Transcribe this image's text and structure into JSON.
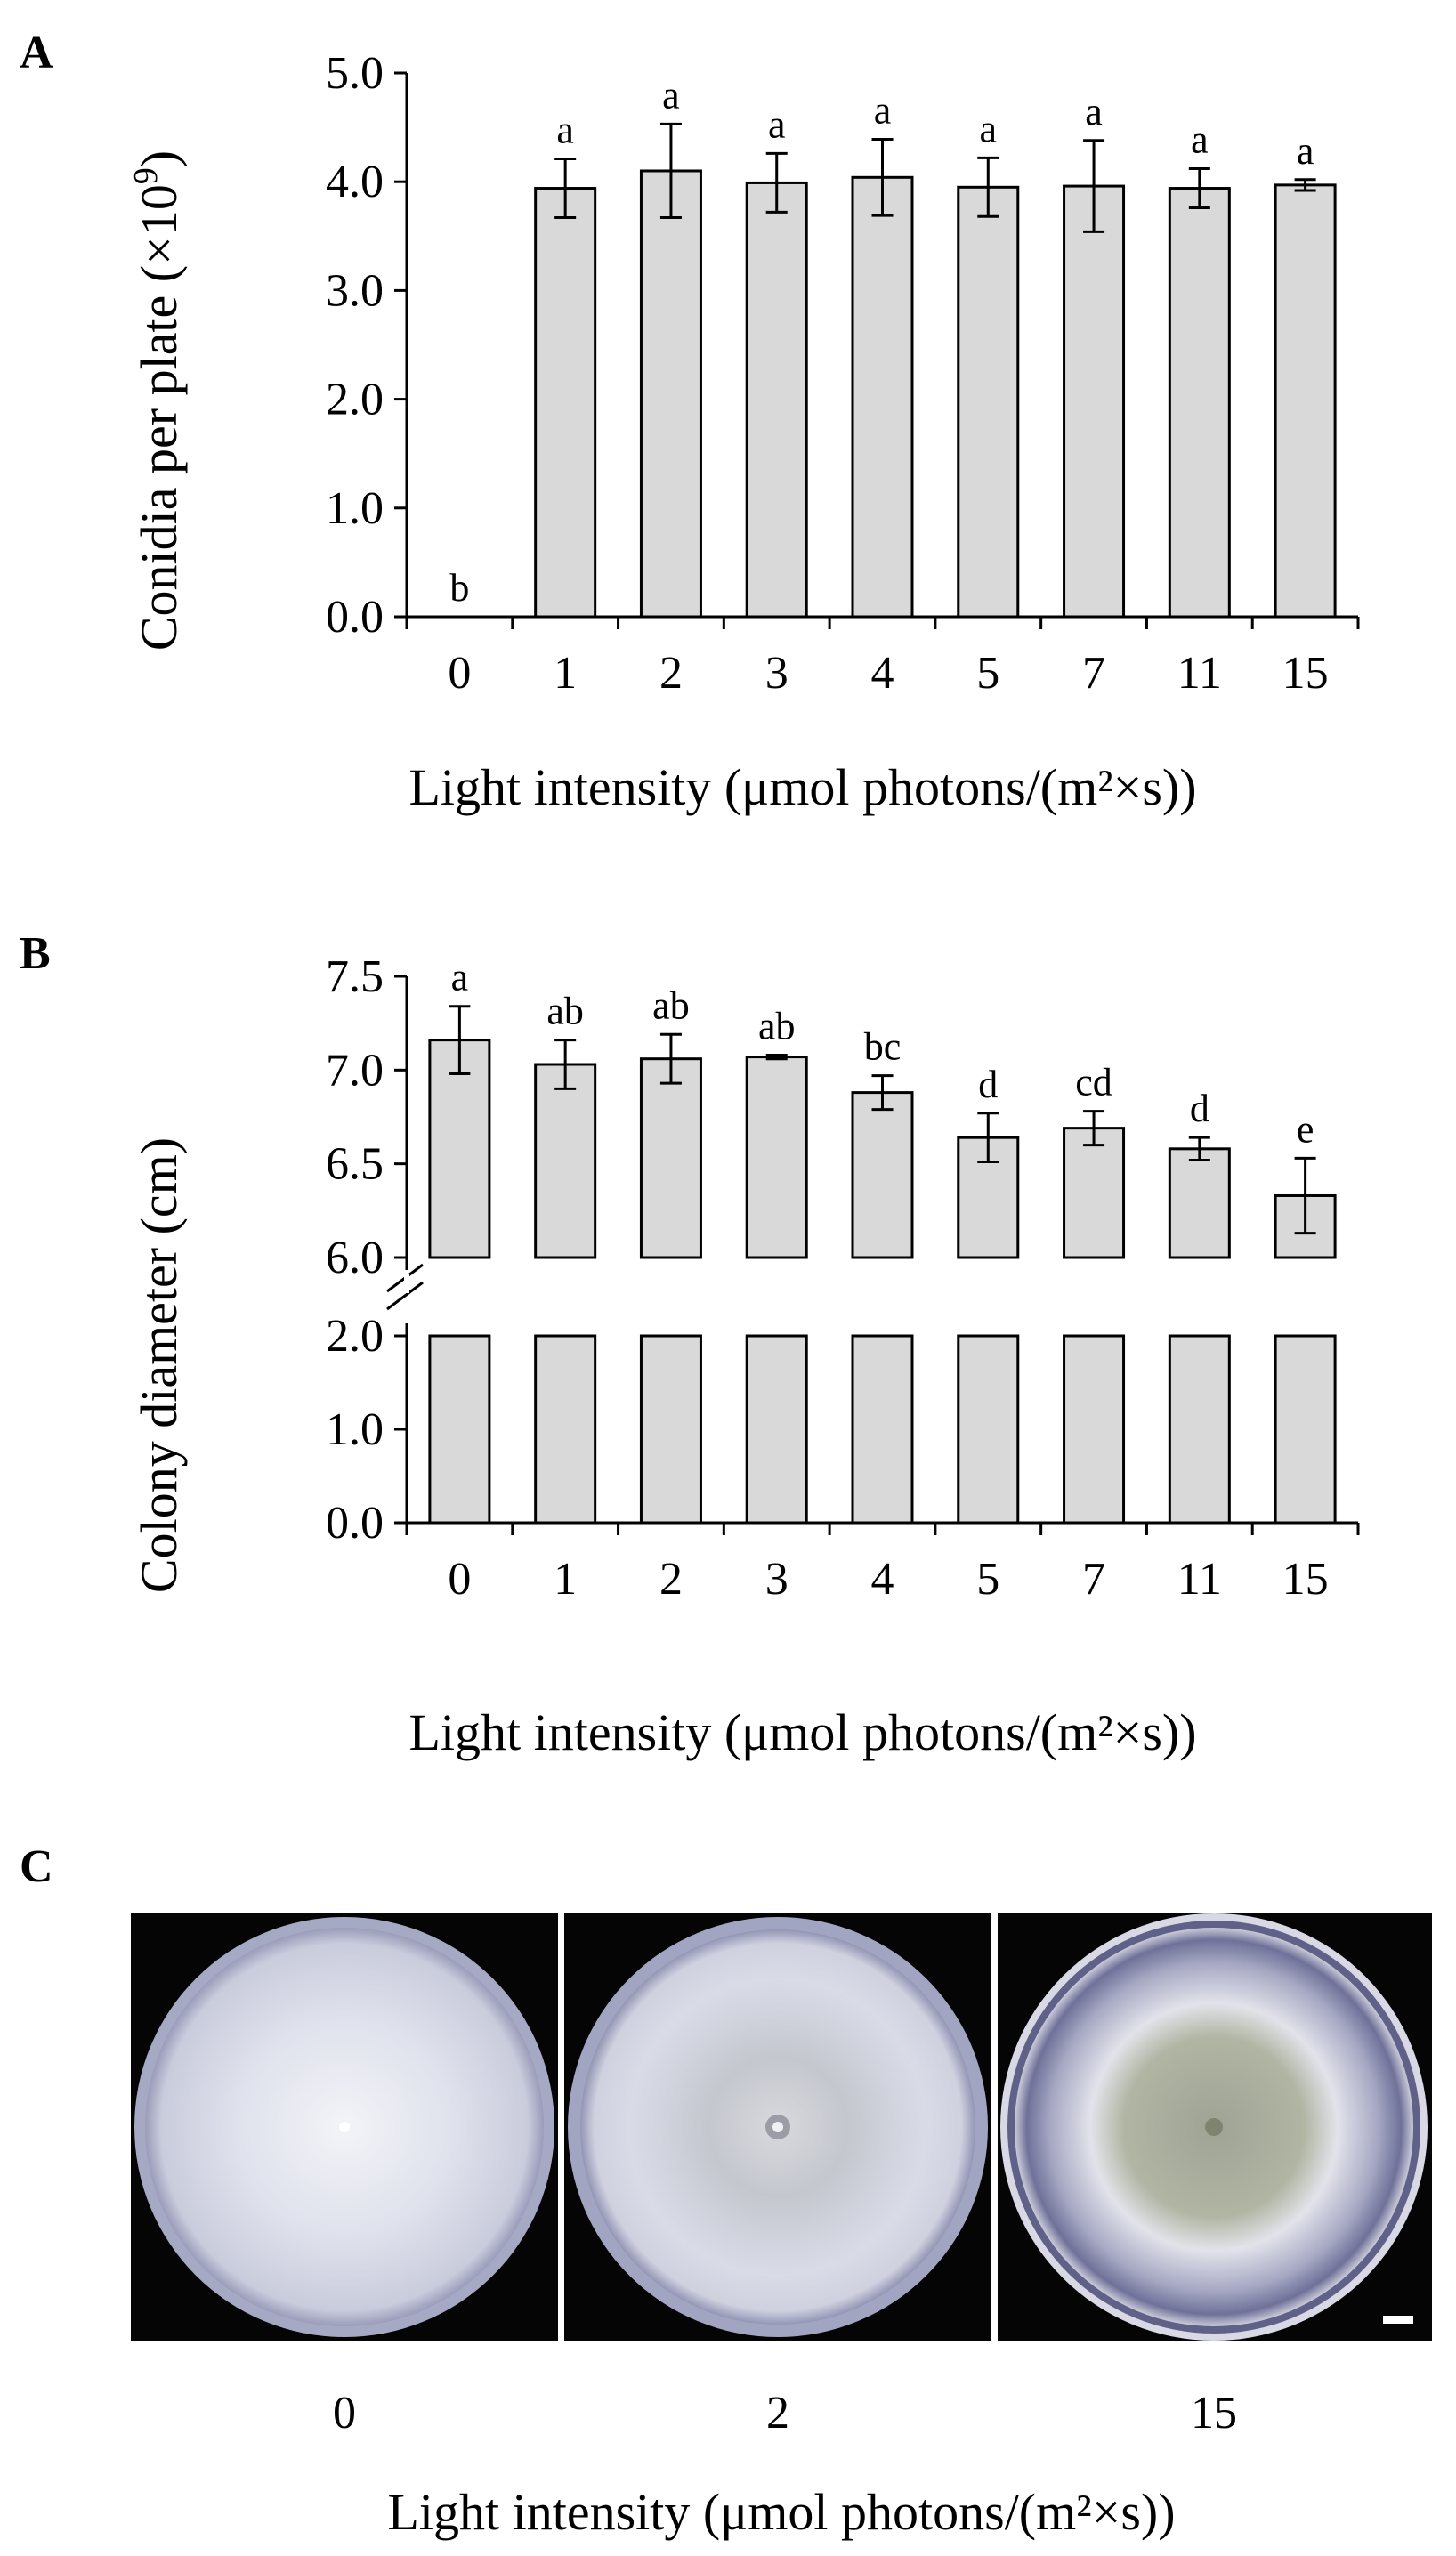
{
  "panel_a": {
    "letter": "A",
    "ylabel_main": "Conidia per plate (×10",
    "ylabel_sup": "9",
    "ylabel_close": ")",
    "xlabel": "Light intensity (μmol photons/(m²×s))"
  },
  "panel_b": {
    "letter": "B",
    "ylabel": "Colony diameter (cm)",
    "xlabel": "Light intensity (μmol photons/(m²×s))"
  },
  "panel_c": {
    "letter": "C",
    "labels": [
      "0",
      "2",
      "15"
    ],
    "xlabel": "Light intensity (μmol photons/(m²×s))",
    "plate_colors": {
      "background": "#050505",
      "rim": "#c9ccdc",
      "mycelium_light": "#e8eaf2",
      "mycelium_mid": "#c7c9d9",
      "center_green": "#a9ae9c",
      "edge_blue": "#7e80a6"
    }
  },
  "chart_data": [
    {
      "type": "bar",
      "categories": [
        "0",
        "1",
        "2",
        "3",
        "4",
        "5",
        "7",
        "11",
        "15"
      ],
      "values": [
        0,
        3.94,
        4.1,
        3.99,
        4.04,
        3.95,
        3.96,
        3.94,
        3.97
      ],
      "errors": [
        0,
        0.27,
        0.43,
        0.27,
        0.35,
        0.27,
        0.42,
        0.18,
        0.05
      ],
      "significance": [
        "b",
        "a",
        "a",
        "a",
        "a",
        "a",
        "a",
        "a",
        "a"
      ],
      "yticks": [
        "0.0",
        "1.0",
        "2.0",
        "3.0",
        "4.0",
        "5.0"
      ],
      "ylim": [
        0,
        5
      ],
      "grid": false,
      "bar_color": "#d9d9d9"
    },
    {
      "type": "bar",
      "categories": [
        "0",
        "1",
        "2",
        "3",
        "4",
        "5",
        "7",
        "11",
        "15"
      ],
      "values": [
        7.16,
        7.03,
        7.06,
        7.07,
        6.88,
        6.64,
        6.69,
        6.58,
        6.33
      ],
      "errors": [
        0.18,
        0.13,
        0.13,
        0.01,
        0.09,
        0.13,
        0.09,
        0.06,
        0.2
      ],
      "significance": [
        "a",
        "ab",
        "ab",
        "ab",
        "bc",
        "d",
        "cd",
        "d",
        "e"
      ],
      "yticks_lower": [
        "0.0",
        "1.0",
        "2.0"
      ],
      "yticks_upper": [
        "6.0",
        "6.5",
        "7.0",
        "7.5"
      ],
      "axis_break": [
        2.0,
        6.0
      ],
      "ylim": [
        0,
        7.5
      ],
      "grid": false,
      "bar_color": "#d9d9d9"
    }
  ]
}
